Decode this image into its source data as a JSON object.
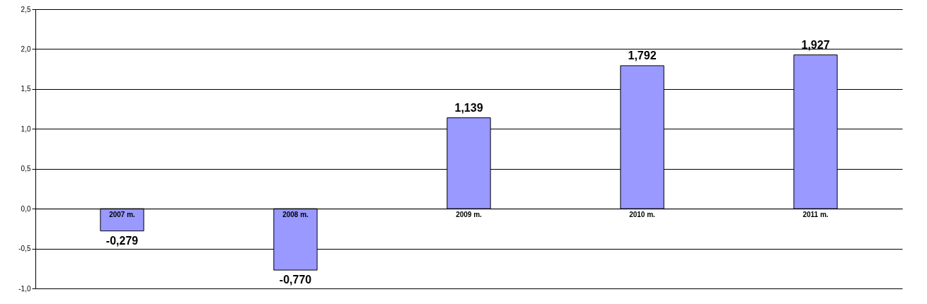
{
  "chart_data": {
    "type": "bar",
    "categories": [
      "2007 m.",
      "2008 m.",
      "2009 m.",
      "2010 m.",
      "2011 m."
    ],
    "values": [
      -0.279,
      -0.77,
      1.139,
      1.792,
      1.927
    ],
    "value_labels": [
      "-0,279",
      "-0,770",
      "1,139",
      "1,792",
      "1,927"
    ],
    "color": "#9999ff",
    "ylim": [
      -1.0,
      2.5
    ],
    "yticks": [
      {
        "value": -1.0,
        "label": "-1,0"
      },
      {
        "value": -0.5,
        "label": "-0,5"
      },
      {
        "value": 0,
        "label": "0,0"
      },
      {
        "value": 0.5,
        "label": "0,5"
      },
      {
        "value": 1.0,
        "label": "1,0"
      },
      {
        "value": 1.5,
        "label": "1,5"
      },
      {
        "value": 2.0,
        "label": "2,0"
      },
      {
        "value": 2.5,
        "label": "2,5"
      }
    ],
    "grid": "y"
  }
}
